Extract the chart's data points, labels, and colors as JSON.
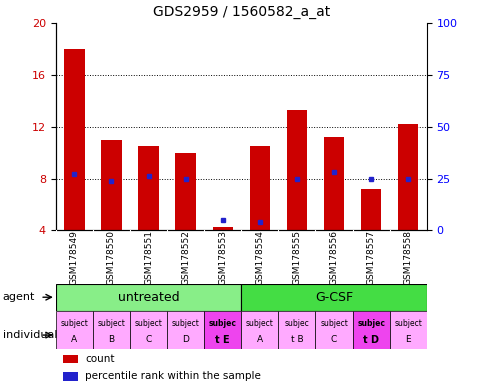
{
  "title": "GDS2959 / 1560582_a_at",
  "samples": [
    "GSM178549",
    "GSM178550",
    "GSM178551",
    "GSM178552",
    "GSM178553",
    "GSM178554",
    "GSM178555",
    "GSM178556",
    "GSM178557",
    "GSM178558"
  ],
  "counts": [
    18.0,
    11.0,
    10.5,
    10.0,
    4.3,
    10.5,
    13.3,
    11.2,
    7.2,
    12.2
  ],
  "percentile_ranks_pct": [
    27,
    24,
    26,
    25,
    5,
    4,
    25,
    28,
    25,
    25
  ],
  "ylim": [
    4,
    20
  ],
  "y_left_ticks": [
    4,
    8,
    12,
    16,
    20
  ],
  "y_right_ticks": [
    0,
    25,
    50,
    75,
    100
  ],
  "bar_color": "#cc0000",
  "dot_color": "#2222cc",
  "agent_color_untreated": "#88ee88",
  "agent_color_gcsf": "#44dd44",
  "ind_color_light": "#ffaaff",
  "ind_color_bold": "#ee44ee",
  "gsm_bg": "#cccccc",
  "bg_color": "#ffffff",
  "individual_labels_line1": [
    "subject",
    "subject",
    "subject",
    "subject",
    "subjec",
    "subject",
    "subjec",
    "subject",
    "subjec",
    "subject"
  ],
  "individual_labels_line2": [
    "A",
    "B",
    "C",
    "D",
    "t E",
    "A",
    "t B",
    "C",
    "t D",
    "E"
  ],
  "individual_bold": [
    4,
    8
  ]
}
